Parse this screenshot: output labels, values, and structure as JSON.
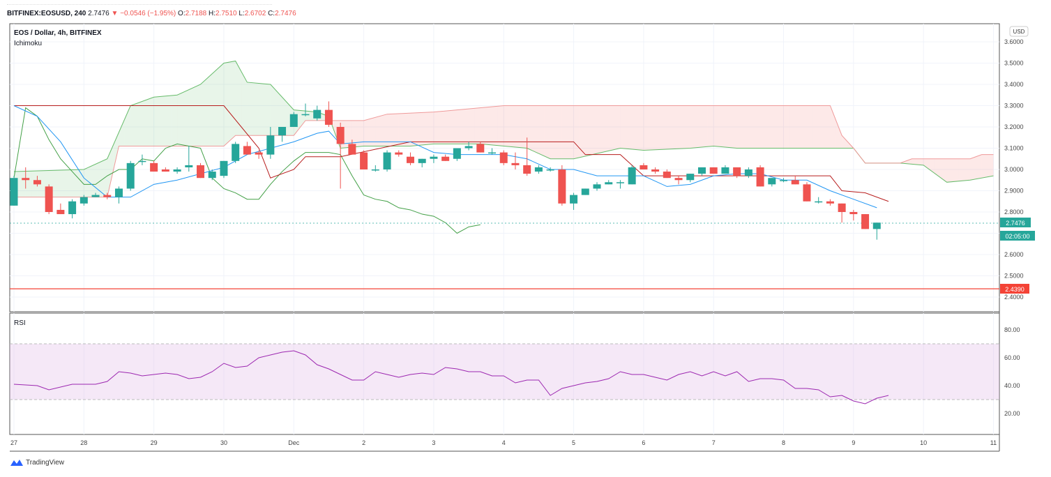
{
  "header": {
    "symbol": "BITFINEX:EOSUSD, 240",
    "last": "2.7476",
    "change_arrow": "▼",
    "change": "−0.0546 (−1.95%)",
    "o_label": "O:",
    "o": "2.7188",
    "h_label": "H:",
    "h": "2.7510",
    "l_label": "L:",
    "l": "2.6702",
    "c_label": "C:",
    "c": "2.7476"
  },
  "main_pane": {
    "title": "EOS / Dollar, 4h, BITFINEX",
    "indicator": "Ichimoku",
    "currency": "USD",
    "last_price_label": "2.7476",
    "countdown_label": "02:05:00",
    "hline_label": "2.4390"
  },
  "rsi_pane": {
    "title": "RSI"
  },
  "brand": {
    "name": "TradingView"
  },
  "colors": {
    "up": "#26a69a",
    "down": "#ef5350",
    "conversion": "#2196f3",
    "base": "#b71c1c",
    "span_a": "#66bb6a",
    "span_b": "#ef9a9a",
    "lagging": "#43a047",
    "rsi_line": "#9c27b0",
    "rsi_band": "#e1bee7",
    "hline": "#f44336"
  },
  "chart_data": [
    {
      "type": "candlestick",
      "title": "EOS / Dollar, 4h, BITFINEX",
      "ylim": [
        2.4,
        3.6
      ],
      "y_ticks": [
        2.4,
        2.5,
        2.6,
        2.7,
        2.8,
        2.9,
        3.0,
        3.1,
        3.2,
        3.3,
        3.4,
        3.5,
        3.6
      ],
      "x_ticks": [
        {
          "label": "27",
          "i": 0
        },
        {
          "label": "28",
          "i": 6
        },
        {
          "label": "29",
          "i": 12
        },
        {
          "label": "30",
          "i": 18
        },
        {
          "label": "Dec",
          "i": 24
        },
        {
          "label": "2",
          "i": 30
        },
        {
          "label": "3",
          "i": 36
        },
        {
          "label": "4",
          "i": 42
        },
        {
          "label": "5",
          "i": 48
        },
        {
          "label": "6",
          "i": 54
        },
        {
          "label": "7",
          "i": 60
        },
        {
          "label": "8",
          "i": 66
        },
        {
          "label": "9",
          "i": 72
        },
        {
          "label": "10",
          "i": 78
        },
        {
          "label": "11",
          "i": 84
        }
      ],
      "ohlc": [
        [
          2.83,
          2.97,
          2.83,
          2.96
        ],
        [
          2.96,
          3.01,
          2.91,
          2.95
        ],
        [
          2.95,
          2.97,
          2.92,
          2.93
        ],
        [
          2.92,
          2.93,
          2.79,
          2.8
        ],
        [
          2.81,
          2.84,
          2.79,
          2.79
        ],
        [
          2.79,
          2.86,
          2.77,
          2.85
        ],
        [
          2.84,
          2.88,
          2.83,
          2.87
        ],
        [
          2.87,
          2.89,
          2.87,
          2.88
        ],
        [
          2.88,
          2.89,
          2.86,
          2.87
        ],
        [
          2.87,
          2.92,
          2.84,
          2.91
        ],
        [
          2.91,
          3.04,
          2.9,
          3.03
        ],
        [
          3.04,
          3.07,
          3.02,
          3.04
        ],
        [
          3.03,
          3.04,
          2.99,
          2.99
        ],
        [
          3.0,
          3.01,
          2.99,
          2.99
        ],
        [
          2.99,
          3.01,
          2.98,
          3.0
        ],
        [
          3.01,
          3.11,
          2.99,
          3.02
        ],
        [
          3.02,
          3.03,
          2.96,
          2.96
        ],
        [
          2.96,
          3.0,
          2.95,
          2.99
        ],
        [
          2.97,
          3.04,
          2.96,
          3.04
        ],
        [
          3.04,
          3.13,
          3.03,
          3.12
        ],
        [
          3.11,
          3.13,
          3.07,
          3.07
        ],
        [
          3.08,
          3.09,
          3.05,
          3.07
        ],
        [
          3.07,
          3.2,
          3.05,
          3.16
        ],
        [
          3.16,
          3.2,
          3.13,
          3.2
        ],
        [
          3.2,
          3.27,
          3.2,
          3.26
        ],
        [
          3.26,
          3.31,
          3.25,
          3.26
        ],
        [
          3.24,
          3.3,
          3.23,
          3.28
        ],
        [
          3.28,
          3.32,
          3.2,
          3.21
        ],
        [
          3.2,
          3.22,
          2.91,
          3.12
        ],
        [
          3.12,
          3.14,
          3.07,
          3.07
        ],
        [
          3.08,
          3.09,
          3.0,
          3.0
        ],
        [
          3.0,
          3.02,
          2.99,
          3.0
        ],
        [
          3.0,
          3.09,
          2.99,
          3.08
        ],
        [
          3.08,
          3.09,
          3.06,
          3.07
        ],
        [
          3.06,
          3.08,
          3.02,
          3.03
        ],
        [
          3.03,
          3.05,
          3.01,
          3.05
        ],
        [
          3.05,
          3.07,
          3.03,
          3.06
        ],
        [
          3.06,
          3.07,
          3.04,
          3.04
        ],
        [
          3.05,
          3.1,
          3.04,
          3.1
        ],
        [
          3.1,
          3.13,
          3.09,
          3.11
        ],
        [
          3.12,
          3.13,
          3.08,
          3.08
        ],
        [
          3.08,
          3.1,
          3.07,
          3.08
        ],
        [
          3.08,
          3.09,
          3.02,
          3.03
        ],
        [
          3.03,
          3.08,
          3.0,
          3.02
        ],
        [
          3.02,
          3.15,
          2.97,
          2.98
        ],
        [
          2.99,
          3.02,
          2.98,
          3.01
        ],
        [
          3.0,
          3.01,
          2.99,
          3.0
        ],
        [
          3.0,
          3.02,
          2.83,
          2.84
        ],
        [
          2.84,
          2.89,
          2.81,
          2.88
        ],
        [
          2.88,
          2.91,
          2.88,
          2.91
        ],
        [
          2.91,
          2.94,
          2.9,
          2.93
        ],
        [
          2.93,
          2.95,
          2.93,
          2.94
        ],
        [
          2.94,
          2.95,
          2.91,
          2.94
        ],
        [
          2.93,
          3.02,
          2.93,
          3.01
        ],
        [
          3.02,
          3.03,
          3.0,
          3.0
        ],
        [
          3.0,
          3.01,
          2.98,
          2.99
        ],
        [
          2.99,
          3.0,
          2.96,
          2.96
        ],
        [
          2.96,
          2.97,
          2.93,
          2.95
        ],
        [
          2.95,
          2.98,
          2.94,
          2.98
        ],
        [
          2.98,
          3.01,
          2.97,
          3.01
        ],
        [
          3.01,
          3.01,
          2.98,
          2.98
        ],
        [
          2.98,
          3.02,
          2.98,
          3.01
        ],
        [
          3.01,
          3.01,
          2.96,
          2.97
        ],
        [
          2.97,
          3.01,
          2.96,
          3.0
        ],
        [
          3.01,
          3.02,
          2.92,
          2.92
        ],
        [
          2.93,
          2.96,
          2.92,
          2.96
        ],
        [
          2.95,
          2.96,
          2.94,
          2.95
        ],
        [
          2.95,
          2.97,
          2.93,
          2.93
        ],
        [
          2.93,
          2.94,
          2.85,
          2.85
        ],
        [
          2.85,
          2.87,
          2.84,
          2.85
        ],
        [
          2.85,
          2.86,
          2.83,
          2.84
        ],
        [
          2.84,
          2.84,
          2.75,
          2.8
        ],
        [
          2.8,
          2.81,
          2.76,
          2.79
        ],
        [
          2.79,
          2.79,
          2.72,
          2.72
        ],
        [
          2.72,
          2.75,
          2.67,
          2.75
        ]
      ],
      "conversion_line": [
        [
          0,
          3.3
        ],
        [
          2,
          3.25
        ],
        [
          4,
          3.13
        ],
        [
          6,
          2.96
        ],
        [
          8,
          2.87
        ],
        [
          10,
          2.87
        ],
        [
          12,
          2.93
        ],
        [
          14,
          2.95
        ],
        [
          16,
          2.98
        ],
        [
          18,
          3.01
        ],
        [
          20,
          3.07
        ],
        [
          22,
          3.1
        ],
        [
          24,
          3.13
        ],
        [
          26,
          3.17
        ],
        [
          27,
          3.18
        ],
        [
          28,
          3.12
        ],
        [
          30,
          3.13
        ],
        [
          32,
          3.13
        ],
        [
          34,
          3.13
        ],
        [
          36,
          3.08
        ],
        [
          38,
          3.07
        ],
        [
          40,
          3.07
        ],
        [
          42,
          3.07
        ],
        [
          44,
          3.05
        ],
        [
          46,
          3.0
        ],
        [
          48,
          3.0
        ],
        [
          50,
          2.97
        ],
        [
          52,
          2.97
        ],
        [
          54,
          2.97
        ],
        [
          56,
          2.92
        ],
        [
          58,
          2.93
        ],
        [
          60,
          2.97
        ],
        [
          62,
          2.98
        ],
        [
          64,
          2.98
        ],
        [
          66,
          2.95
        ],
        [
          68,
          2.95
        ],
        [
          70,
          2.9
        ],
        [
          72,
          2.86
        ],
        [
          74,
          2.82
        ]
      ],
      "base_line": [
        [
          0,
          3.3
        ],
        [
          18,
          3.3
        ],
        [
          21,
          3.1
        ],
        [
          22,
          2.96
        ],
        [
          24,
          3.0
        ],
        [
          25,
          3.06
        ],
        [
          28,
          3.06
        ],
        [
          34,
          3.13
        ],
        [
          48,
          3.13
        ],
        [
          49,
          3.07
        ],
        [
          52,
          3.07
        ],
        [
          54,
          2.97
        ],
        [
          66,
          2.97
        ],
        [
          70,
          2.97
        ],
        [
          71,
          2.9
        ],
        [
          73,
          2.89
        ],
        [
          75,
          2.85
        ]
      ],
      "span_a": [
        [
          0,
          2.99
        ],
        [
          6,
          3.0
        ],
        [
          8,
          3.05
        ],
        [
          10,
          3.3
        ],
        [
          12,
          3.34
        ],
        [
          14,
          3.35
        ],
        [
          16,
          3.4
        ],
        [
          18,
          3.5
        ],
        [
          19,
          3.51
        ],
        [
          20,
          3.41
        ],
        [
          22,
          3.4
        ],
        [
          24,
          3.28
        ],
        [
          26,
          3.27
        ],
        [
          27,
          3.25
        ],
        [
          28,
          3.1
        ],
        [
          30,
          3.11
        ],
        [
          34,
          3.11
        ],
        [
          36,
          3.12
        ],
        [
          40,
          3.12
        ],
        [
          44,
          3.1
        ],
        [
          46,
          3.05
        ],
        [
          48,
          3.05
        ],
        [
          52,
          3.1
        ],
        [
          54,
          3.09
        ],
        [
          58,
          3.1
        ],
        [
          60,
          3.11
        ],
        [
          62,
          3.1
        ],
        [
          66,
          3.1
        ],
        [
          70,
          3.1
        ],
        [
          72,
          3.1
        ],
        [
          73,
          3.03
        ],
        [
          76,
          3.03
        ],
        [
          78,
          3.02
        ],
        [
          80,
          2.94
        ],
        [
          82,
          2.95
        ],
        [
          84,
          2.97
        ]
      ],
      "span_b": [
        [
          0,
          2.87
        ],
        [
          6,
          2.87
        ],
        [
          8,
          2.87
        ],
        [
          9,
          3.11
        ],
        [
          18,
          3.11
        ],
        [
          19,
          3.16
        ],
        [
          24,
          3.16
        ],
        [
          25,
          3.23
        ],
        [
          28,
          3.23
        ],
        [
          30,
          3.23
        ],
        [
          32,
          3.26
        ],
        [
          36,
          3.27
        ],
        [
          38,
          3.28
        ],
        [
          42,
          3.3
        ],
        [
          70,
          3.3
        ],
        [
          71,
          3.16
        ],
        [
          72,
          3.1
        ],
        [
          73,
          3.03
        ],
        [
          76,
          3.03
        ],
        [
          77,
          3.05
        ],
        [
          82,
          3.05
        ],
        [
          83,
          3.07
        ],
        [
          84,
          3.07
        ]
      ],
      "lagging_span": [
        [
          0,
          2.96
        ],
        [
          1,
          3.29
        ],
        [
          2,
          3.25
        ],
        [
          3,
          3.14
        ],
        [
          4,
          3.05
        ],
        [
          5,
          2.99
        ],
        [
          6,
          2.93
        ],
        [
          7,
          2.93
        ],
        [
          8,
          2.97
        ],
        [
          9,
          3.0
        ],
        [
          10,
          3.0
        ],
        [
          11,
          3.05
        ],
        [
          12,
          3.04
        ],
        [
          13,
          3.1
        ],
        [
          14,
          3.12
        ],
        [
          15,
          3.11
        ],
        [
          16,
          3.1
        ],
        [
          17,
          2.96
        ],
        [
          18,
          2.91
        ],
        [
          19,
          2.89
        ],
        [
          20,
          2.86
        ],
        [
          21,
          2.86
        ],
        [
          22,
          2.93
        ],
        [
          23,
          2.99
        ],
        [
          24,
          3.04
        ],
        [
          25,
          3.08
        ],
        [
          26,
          3.08
        ],
        [
          27,
          3.08
        ],
        [
          28,
          3.07
        ],
        [
          29,
          2.97
        ],
        [
          30,
          2.88
        ],
        [
          31,
          2.86
        ],
        [
          32,
          2.85
        ],
        [
          33,
          2.82
        ],
        [
          34,
          2.81
        ],
        [
          35,
          2.79
        ],
        [
          36,
          2.78
        ],
        [
          37,
          2.75
        ],
        [
          38,
          2.7
        ],
        [
          39,
          2.73
        ],
        [
          40,
          2.74
        ]
      ],
      "last_price": 2.7476,
      "hline": 2.439
    },
    {
      "type": "line",
      "title": "RSI",
      "ylim": [
        10,
        85
      ],
      "y_ticks": [
        20.0,
        40.0,
        60.0,
        80.0
      ],
      "band": [
        30,
        70
      ],
      "x": [
        0,
        2,
        3,
        5,
        6,
        7,
        8,
        9,
        10,
        11,
        12,
        13,
        14,
        15,
        16,
        17,
        18,
        19,
        20,
        21,
        22,
        23,
        24,
        25,
        26,
        27,
        28,
        29,
        30,
        31,
        32,
        33,
        34,
        35,
        36,
        37,
        38,
        39,
        40,
        41,
        42,
        43,
        44,
        45,
        46,
        47,
        48,
        49,
        50,
        51,
        52,
        53,
        54,
        55,
        56,
        57,
        58,
        59,
        60,
        61,
        62,
        63,
        64,
        65,
        66,
        67,
        68,
        69,
        70,
        71,
        72,
        73,
        74,
        75
      ],
      "values": [
        41,
        40,
        37,
        41,
        41,
        41,
        43,
        50,
        49,
        47,
        48,
        49,
        48,
        45,
        46,
        50,
        56,
        53,
        54,
        60,
        62,
        64,
        65,
        62,
        55,
        52,
        48,
        44,
        44,
        50,
        48,
        46,
        48,
        49,
        48,
        53,
        52,
        50,
        50,
        47,
        47,
        42,
        44,
        44,
        33,
        38,
        40,
        42,
        43,
        45,
        50,
        48,
        48,
        46,
        44,
        48,
        50,
        47,
        50,
        47,
        50,
        43,
        45,
        45,
        44,
        38,
        38,
        37,
        32,
        33,
        29,
        27,
        31,
        33
      ]
    }
  ]
}
